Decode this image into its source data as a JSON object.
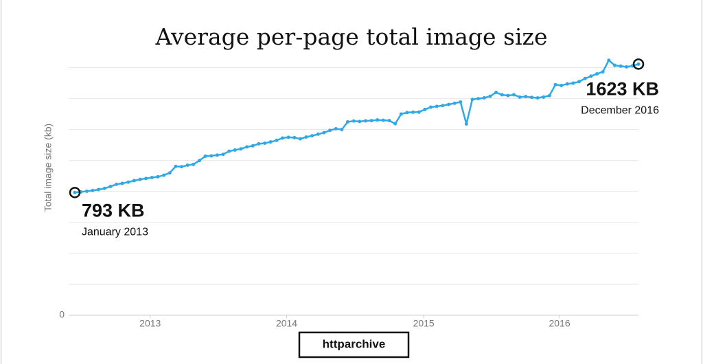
{
  "chart_data": {
    "type": "line",
    "title": "Average per-page total image size",
    "y_label": "Total image size (kb)",
    "color": "#2ea8e6",
    "values": [
      793,
      797,
      801,
      806,
      812,
      820,
      832,
      846,
      852,
      860,
      870,
      878,
      884,
      890,
      895,
      905,
      920,
      962,
      960,
      970,
      975,
      1000,
      1028,
      1030,
      1035,
      1040,
      1060,
      1068,
      1075,
      1088,
      1095,
      1108,
      1112,
      1120,
      1130,
      1145,
      1150,
      1148,
      1140,
      1152,
      1160,
      1170,
      1180,
      1195,
      1205,
      1200,
      1250,
      1255,
      1252,
      1256,
      1258,
      1262,
      1260,
      1258,
      1238,
      1300,
      1310,
      1312,
      1313,
      1330,
      1345,
      1350,
      1355,
      1362,
      1370,
      1378,
      1236,
      1395,
      1400,
      1405,
      1415,
      1440,
      1425,
      1420,
      1425,
      1410,
      1413,
      1408,
      1405,
      1410,
      1420,
      1490,
      1485,
      1495,
      1500,
      1510,
      1530,
      1545,
      1560,
      1573,
      1648,
      1615,
      1610,
      1605,
      1612,
      1623
    ],
    "xlim": [
      0,
      95
    ],
    "xticks": [
      {
        "value": 12.7,
        "label": "2013"
      },
      {
        "value": 35.7,
        "label": "2014"
      },
      {
        "value": 58.8,
        "label": "2015"
      },
      {
        "value": 81.7,
        "label": "2016"
      }
    ],
    "ylim": [
      0,
      1700
    ],
    "yticks": [
      0
    ],
    "ygrid": [
      200,
      400,
      600,
      800,
      1000,
      1200,
      1400,
      1600
    ],
    "annotations": [
      {
        "index": 0,
        "text": "793 KB",
        "date": "January 2013"
      },
      {
        "index": 95,
        "text": "1623 KB",
        "date": "December 2016"
      }
    ],
    "source_button": "httparchive"
  }
}
